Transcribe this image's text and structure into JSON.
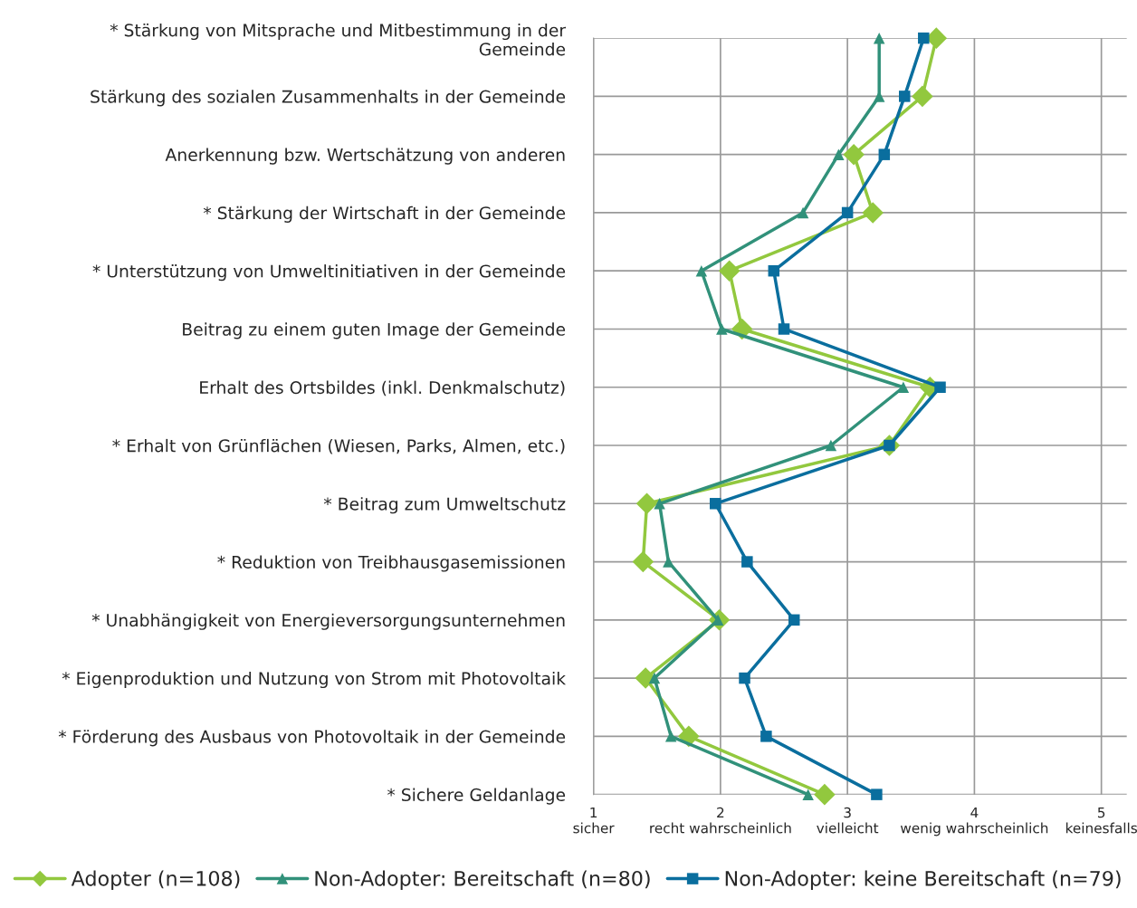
{
  "chart_data": {
    "type": "line",
    "orientation": "horizontal",
    "categories": [
      "* Stärkung von Mitsprache und Mitbestimmung in der\nGemeinde",
      "Stärkung des sozialen Zusammenhalts in der Gemeinde",
      "Anerkennung bzw. Wertschätzung von anderen",
      "* Stärkung der Wirtschaft in der Gemeinde",
      "* Unterstützung von Umweltinitiativen in der Gemeinde",
      "Beitrag zu einem guten Image der Gemeinde",
      "Erhalt des Ortsbildes (inkl. Denkmalschutz)",
      "* Erhalt von Grünflächen (Wiesen, Parks, Almen, etc.)",
      "* Beitrag zum Umweltschutz",
      "* Reduktion von Treibhausgasemissionen",
      "* Unabhängigkeit von Energieversorgungsunternehmen",
      "* Eigenproduktion und Nutzung von Strom mit Photovoltaik",
      "* Förderung des Ausbaus von Photovoltaik in der Gemeinde",
      "* Sichere Geldanlage"
    ],
    "series": [
      {
        "name": "Adopter (n=108)",
        "color": "#92c83e",
        "marker": "diamond",
        "values": [
          3.7,
          3.59,
          3.05,
          3.2,
          2.07,
          2.17,
          3.65,
          3.33,
          1.42,
          1.39,
          1.99,
          1.41,
          1.75,
          2.82
        ]
      },
      {
        "name": "Non-Adopter: Bereitschaft (n=80)",
        "color": "#31917a",
        "marker": "triangle",
        "values": [
          3.25,
          3.25,
          2.93,
          2.65,
          1.85,
          2.01,
          3.44,
          2.87,
          1.52,
          1.59,
          1.98,
          1.48,
          1.61,
          2.69
        ]
      },
      {
        "name": "Non-Adopter: keine Bereitschaft (n=79)",
        "color": "#0a6e9e",
        "marker": "square",
        "values": [
          3.6,
          3.45,
          3.29,
          3.0,
          2.42,
          2.5,
          3.73,
          3.33,
          1.96,
          2.21,
          2.58,
          2.19,
          2.36,
          3.23
        ]
      }
    ],
    "xlim": [
      1,
      5.2
    ],
    "xticks": [
      {
        "value": 1,
        "label": "1\nsicher"
      },
      {
        "value": 2,
        "label": "2\nrecht wahrscheinlich"
      },
      {
        "value": 3,
        "label": "3\nvielleicht"
      },
      {
        "value": 4,
        "label": "4\nwenig wahrscheinlich"
      },
      {
        "value": 5,
        "label": "5\nkeinesfalls"
      }
    ],
    "grid": true,
    "legend": "bottom",
    "line_style": "solid"
  }
}
